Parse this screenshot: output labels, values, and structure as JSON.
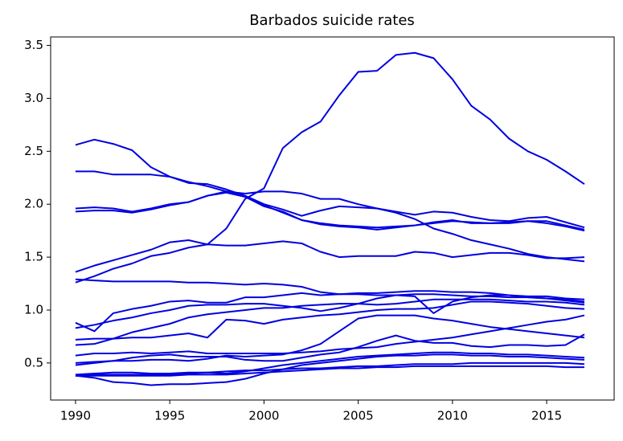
{
  "chart_data": {
    "type": "line",
    "title": "Barbados suicide rates",
    "x": [
      1990,
      1991,
      1992,
      1993,
      1994,
      1995,
      1996,
      1997,
      1998,
      1999,
      2000,
      2001,
      2002,
      2003,
      2004,
      2005,
      2006,
      2007,
      2008,
      2009,
      2010,
      2011,
      2012,
      2013,
      2014,
      2015,
      2016,
      2017
    ],
    "series": [
      {
        "color": "#0000e0",
        "values": [
          1.36,
          1.42,
          1.47,
          1.52,
          1.57,
          1.64,
          1.66,
          1.62,
          1.77,
          2.05,
          2.15,
          2.53,
          2.68,
          2.78,
          3.03,
          3.25,
          3.26,
          3.41,
          3.43,
          3.38,
          3.18,
          2.93,
          2.8,
          2.62,
          2.5,
          2.42,
          2.31,
          2.19
        ]
      },
      {
        "color": "#0000e0",
        "values": [
          2.56,
          2.61,
          2.57,
          2.51,
          2.35,
          2.26,
          2.21,
          2.17,
          2.12,
          2.07,
          1.99,
          1.92,
          1.85,
          1.82,
          1.8,
          1.79,
          1.78,
          1.79,
          1.8,
          1.82,
          1.84,
          1.83,
          1.82,
          1.83,
          1.84,
          1.84,
          1.8,
          1.76
        ]
      },
      {
        "color": "#0000e0",
        "values": [
          2.31,
          2.31,
          2.28,
          2.28,
          2.28,
          2.26,
          2.2,
          2.19,
          2.14,
          2.08,
          2.0,
          1.95,
          1.89,
          1.94,
          1.98,
          1.97,
          1.96,
          1.93,
          1.9,
          1.93,
          1.92,
          1.88,
          1.85,
          1.84,
          1.87,
          1.88,
          1.83,
          1.78
        ]
      },
      {
        "color": "#0000e0",
        "values": [
          1.96,
          1.97,
          1.96,
          1.93,
          1.96,
          2.0,
          2.02,
          2.08,
          2.11,
          2.07,
          1.98,
          1.93,
          1.85,
          1.81,
          1.79,
          1.78,
          1.76,
          1.78,
          1.8,
          1.83,
          1.85,
          1.82,
          1.82,
          1.82,
          1.84,
          1.82,
          1.79,
          1.75
        ]
      },
      {
        "color": "#0000e0",
        "values": [
          1.93,
          1.94,
          1.94,
          1.92,
          1.95,
          1.99,
          2.02,
          2.08,
          2.12,
          2.1,
          2.12,
          2.12,
          2.1,
          2.05,
          2.05,
          2.0,
          1.96,
          1.92,
          1.86,
          1.77,
          1.72,
          1.66,
          1.62,
          1.58,
          1.53,
          1.5,
          1.48,
          1.46
        ]
      },
      {
        "color": "#0000e0",
        "values": [
          1.26,
          1.32,
          1.39,
          1.44,
          1.51,
          1.54,
          1.59,
          1.62,
          1.61,
          1.61,
          1.63,
          1.65,
          1.63,
          1.55,
          1.5,
          1.51,
          1.51,
          1.51,
          1.55,
          1.54,
          1.5,
          1.52,
          1.54,
          1.54,
          1.52,
          1.49,
          1.49,
          1.5
        ]
      },
      {
        "color": "#0000e0",
        "values": [
          1.29,
          1.28,
          1.27,
          1.27,
          1.27,
          1.27,
          1.26,
          1.26,
          1.25,
          1.24,
          1.25,
          1.24,
          1.22,
          1.17,
          1.15,
          1.15,
          1.14,
          1.14,
          1.15,
          1.15,
          1.14,
          1.13,
          1.13,
          1.12,
          1.12,
          1.11,
          1.1,
          1.08
        ]
      },
      {
        "color": "#0000e0",
        "values": [
          0.88,
          0.8,
          0.97,
          1.01,
          1.04,
          1.08,
          1.09,
          1.07,
          1.07,
          1.12,
          1.12,
          1.14,
          1.16,
          1.14,
          1.15,
          1.16,
          1.16,
          1.17,
          1.18,
          1.18,
          1.17,
          1.17,
          1.16,
          1.14,
          1.13,
          1.13,
          1.11,
          1.1
        ]
      },
      {
        "color": "#0000e0",
        "values": [
          0.83,
          0.86,
          0.9,
          0.93,
          0.97,
          1.0,
          1.04,
          1.05,
          1.05,
          1.06,
          1.06,
          1.04,
          1.02,
          0.99,
          1.02,
          1.06,
          1.11,
          1.14,
          1.13,
          0.97,
          1.08,
          1.12,
          1.14,
          1.14,
          1.12,
          1.11,
          1.09,
          1.07
        ]
      },
      {
        "color": "#0000e0",
        "values": [
          0.72,
          0.73,
          0.73,
          0.74,
          0.74,
          0.76,
          0.78,
          0.74,
          0.91,
          0.9,
          0.87,
          0.91,
          0.93,
          0.95,
          0.96,
          0.98,
          1.0,
          1.01,
          1.01,
          1.02,
          1.05,
          1.08,
          1.08,
          1.07,
          1.06,
          1.04,
          1.02,
          1.01
        ]
      },
      {
        "color": "#0000e0",
        "values": [
          0.67,
          0.68,
          0.73,
          0.79,
          0.83,
          0.87,
          0.93,
          0.96,
          0.98,
          1.0,
          1.02,
          1.02,
          1.04,
          1.05,
          1.06,
          1.06,
          1.05,
          1.06,
          1.08,
          1.1,
          1.1,
          1.1,
          1.1,
          1.09,
          1.08,
          1.08,
          1.07,
          1.05
        ]
      },
      {
        "color": "#0000e0",
        "values": [
          0.57,
          0.59,
          0.59,
          0.6,
          0.59,
          0.6,
          0.61,
          0.59,
          0.59,
          0.59,
          0.59,
          0.59,
          0.6,
          0.61,
          0.63,
          0.64,
          0.65,
          0.68,
          0.7,
          0.72,
          0.74,
          0.77,
          0.8,
          0.83,
          0.86,
          0.89,
          0.91,
          0.95
        ]
      },
      {
        "color": "#0000e0",
        "values": [
          0.5,
          0.51,
          0.52,
          0.52,
          0.53,
          0.53,
          0.52,
          0.54,
          0.57,
          0.56,
          0.57,
          0.58,
          0.62,
          0.68,
          0.8,
          0.92,
          0.95,
          0.95,
          0.95,
          0.92,
          0.9,
          0.87,
          0.84,
          0.82,
          0.8,
          0.78,
          0.76,
          0.74
        ]
      },
      {
        "color": "#0000e0",
        "values": [
          0.48,
          0.5,
          0.52,
          0.55,
          0.57,
          0.58,
          0.56,
          0.56,
          0.56,
          0.53,
          0.52,
          0.52,
          0.55,
          0.58,
          0.6,
          0.65,
          0.71,
          0.76,
          0.71,
          0.69,
          0.69,
          0.66,
          0.65,
          0.67,
          0.67,
          0.66,
          0.67,
          0.77
        ]
      },
      {
        "color": "#0000e0",
        "values": [
          0.39,
          0.4,
          0.41,
          0.41,
          0.4,
          0.4,
          0.41,
          0.41,
          0.4,
          0.42,
          0.45,
          0.48,
          0.5,
          0.52,
          0.54,
          0.56,
          0.57,
          0.58,
          0.59,
          0.6,
          0.6,
          0.59,
          0.59,
          0.58,
          0.58,
          0.57,
          0.56,
          0.55
        ]
      },
      {
        "color": "#0000e0",
        "values": [
          0.38,
          0.36,
          0.32,
          0.31,
          0.29,
          0.3,
          0.3,
          0.31,
          0.32,
          0.35,
          0.4,
          0.44,
          0.48,
          0.5,
          0.52,
          0.54,
          0.56,
          0.57,
          0.57,
          0.58,
          0.58,
          0.57,
          0.57,
          0.56,
          0.56,
          0.55,
          0.54,
          0.53
        ]
      },
      {
        "color": "#0000e0",
        "values": [
          0.38,
          0.39,
          0.39,
          0.39,
          0.39,
          0.39,
          0.4,
          0.41,
          0.42,
          0.43,
          0.43,
          0.44,
          0.45,
          0.45,
          0.46,
          0.47,
          0.47,
          0.48,
          0.49,
          0.49,
          0.49,
          0.5,
          0.5,
          0.5,
          0.5,
          0.5,
          0.5,
          0.49
        ]
      },
      {
        "color": "#0000e0",
        "values": [
          0.38,
          0.38,
          0.38,
          0.38,
          0.38,
          0.38,
          0.39,
          0.39,
          0.39,
          0.4,
          0.41,
          0.42,
          0.43,
          0.44,
          0.45,
          0.45,
          0.46,
          0.46,
          0.47,
          0.47,
          0.47,
          0.47,
          0.47,
          0.47,
          0.47,
          0.47,
          0.46,
          0.46
        ]
      }
    ],
    "xlim": [
      1988.68,
      2018.58
    ],
    "xticks": [
      1990,
      1995,
      2000,
      2005,
      2010,
      2015
    ],
    "ylim": [
      0.15,
      3.58
    ],
    "yticks": [
      0.5,
      {
        "value": 1,
        "label": "1.0"
      },
      1.5,
      {
        "value": 2,
        "label": "2.0"
      },
      2.5,
      {
        "value": 3,
        "label": "3.0"
      },
      3.5
    ]
  }
}
